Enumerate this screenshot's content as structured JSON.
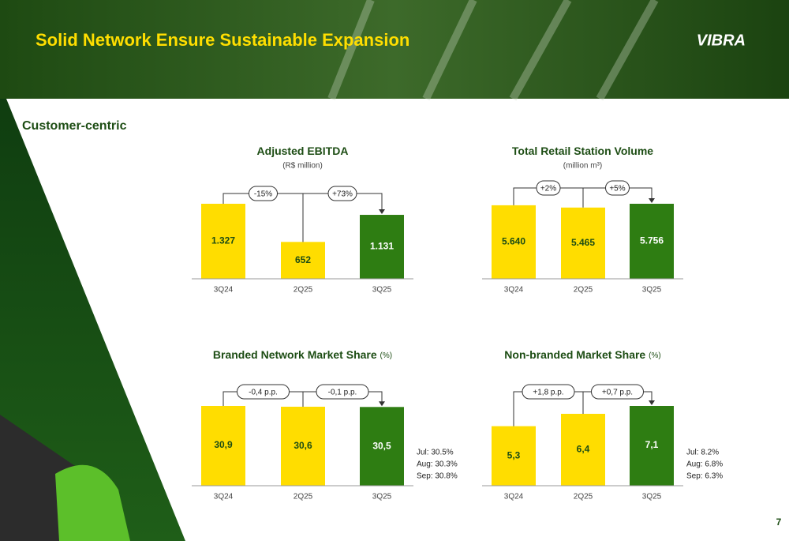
{
  "header": {
    "title": "Solid Network Ensure Sustainable Expansion",
    "logo": "VIBRA"
  },
  "section": "Customer-centric",
  "page_number": "7",
  "chart_data": [
    {
      "type": "bar",
      "title": "Adjusted EBITDA",
      "subtitle": "(R$ million)",
      "categories": [
        "3Q24",
        "2Q25",
        "3Q25"
      ],
      "values": [
        1327,
        652,
        1131
      ],
      "value_labels": [
        "1.327",
        "652",
        "1.131"
      ],
      "colors": [
        "#ffdd00",
        "#ffdd00",
        "#2e7d12"
      ],
      "annotations": [
        "-15%",
        "+73%"
      ]
    },
    {
      "type": "bar",
      "title": "Total Retail Station Volume",
      "subtitle": "(million m³)",
      "categories": [
        "3Q24",
        "2Q25",
        "3Q25"
      ],
      "values": [
        5640,
        5465,
        5756
      ],
      "value_labels": [
        "5.640",
        "5.465",
        "5.756"
      ],
      "colors": [
        "#ffdd00",
        "#ffdd00",
        "#2e7d12"
      ],
      "annotations": [
        "+2%",
        "+5%"
      ]
    },
    {
      "type": "bar",
      "title": "Branded Network Market Share",
      "unit": "(%)",
      "categories": [
        "3Q24",
        "2Q25",
        "3Q25"
      ],
      "values": [
        30.9,
        30.6,
        30.5
      ],
      "value_labels": [
        "30,9",
        "30,6",
        "30,5"
      ],
      "colors": [
        "#ffdd00",
        "#ffdd00",
        "#2e7d12"
      ],
      "annotations": [
        "-0,4 p.p.",
        "-0,1 p.p."
      ],
      "notes": [
        "Jul: 30.5%",
        "Aug: 30.3%",
        "Sep: 30.8%"
      ]
    },
    {
      "type": "bar",
      "title": "Non-branded Market Share",
      "unit": "(%)",
      "categories": [
        "3Q24",
        "2Q25",
        "3Q25"
      ],
      "values": [
        5.3,
        6.4,
        7.1
      ],
      "value_labels": [
        "5,3",
        "6,4",
        "7,1"
      ],
      "colors": [
        "#ffdd00",
        "#ffdd00",
        "#2e7d12"
      ],
      "annotations": [
        "+1,8 p.p.",
        "+0,7 p.p."
      ],
      "notes": [
        "Jul: 8.2%",
        "Aug: 6.8%",
        "Sep: 6.3%"
      ]
    }
  ]
}
